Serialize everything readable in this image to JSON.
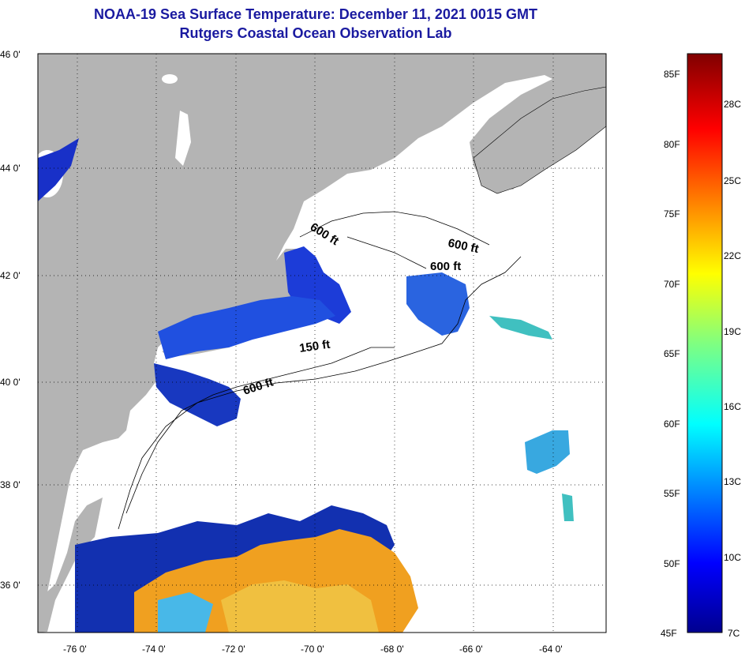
{
  "title": "NOAA-19 Sea Surface Temperature:  December 11, 2021 0015 GMT",
  "subtitle": "Rutgers Coastal Ocean Observation Lab",
  "lat_labels": [
    "46 0'",
    "44 0'",
    "42 0'",
    "40 0'",
    "38 0'",
    "36 0'"
  ],
  "lon_labels": [
    "-76 0'",
    "-74 0'",
    "-72 0'",
    "-70 0'",
    "-68 0'",
    "-66 0'",
    "-64 0'"
  ],
  "depth_labels": [
    "600 ft",
    "600 ft",
    "600 ft",
    "150 ft",
    "600 ft"
  ],
  "colorbar": {
    "fahrenheit": [
      "85F",
      "80F",
      "75F",
      "70F",
      "65F",
      "60F",
      "55F",
      "50F",
      "45F"
    ],
    "celsius": [
      "28C",
      "25C",
      "22C",
      "19C",
      "16C",
      "13C",
      "10C",
      "7C"
    ]
  },
  "colors": {
    "land": "#b4b4b4",
    "title": "#1a1aa0"
  }
}
